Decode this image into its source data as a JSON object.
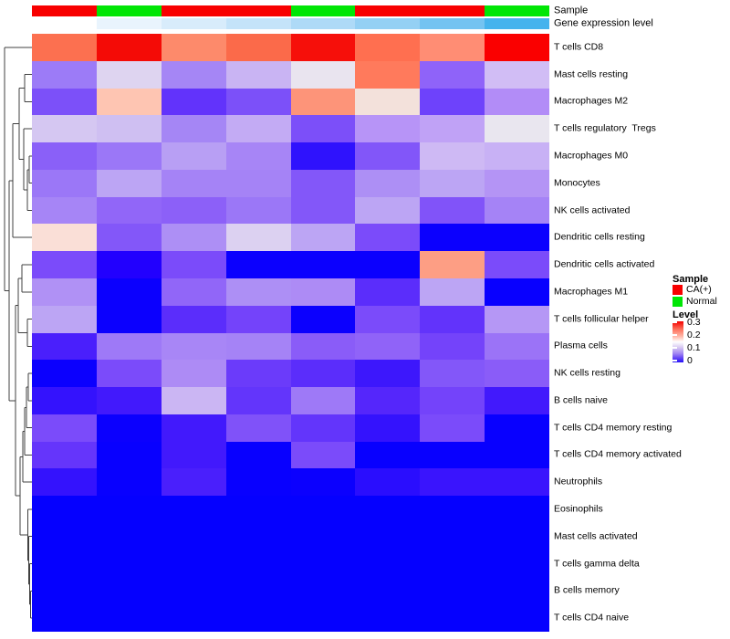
{
  "figure": {
    "annotations": {
      "sample_label": "Sample",
      "gene_label": "Gene expression level"
    },
    "legend": {
      "sample_title": "Sample",
      "sample_items": [
        {
          "label": "CA(+)",
          "color": "#f80000"
        },
        {
          "label": "Normal",
          "color": "#00e605"
        }
      ],
      "level_title": "Level",
      "level_ticks": [
        "0.3",
        "0.2",
        "0.1",
        "0"
      ]
    }
  },
  "chart_data": {
    "type": "heatmap",
    "n_cols": 8,
    "col_annotations": {
      "sample_groups": [
        "CA(+)",
        "Normal",
        "CA(+)",
        "CA(+)",
        "Normal",
        "CA(+)",
        "CA(+)",
        "Normal"
      ],
      "sample_colors": [
        "#f80000",
        "#00e605",
        "#f80000",
        "#f80000",
        "#00e605",
        "#f80000",
        "#f80000",
        "#00e605"
      ],
      "gene_expression_colors": [
        "#ffffff",
        "#e9f4fd",
        "#d8ecfb",
        "#c4e3f9",
        "#aedaf7",
        "#94d0f4",
        "#74c3f1",
        "#45b3ed"
      ]
    },
    "color_scale": {
      "label": "Level",
      "domain": [
        0,
        0.3
      ],
      "ticks": [
        0.3,
        0.2,
        0.1,
        0
      ],
      "min_color": "#0500ff",
      "mid_color": "#ffffff",
      "max_color": "#f80000"
    },
    "rows": [
      {
        "name": "T cells CD8",
        "colors": [
          "#fc7050",
          "#f40b06",
          "#fd8a6b",
          "#fb6a4a",
          "#f60f0a",
          "#ff6f50",
          "#ff8d74",
          "#fa0000"
        ]
      },
      {
        "name": "Mast cells resting",
        "colors": [
          "#9c7bf7",
          "#ded4f0",
          "#a586f5",
          "#c9b4f3",
          "#e9e4ef",
          "#ff7a5c",
          "#8f63f9",
          "#d1bdf5"
        ]
      },
      {
        "name": "Macrophages M2",
        "colors": [
          "#7c50f9",
          "#fec5b2",
          "#6233fb",
          "#7c50f9",
          "#fd9479",
          "#f3e1db",
          "#6e42fb",
          "#b28cf7"
        ]
      },
      {
        "name": "T cells regulatory  Tregs",
        "colors": [
          "#d5c7f2",
          "#cfbff2",
          "#a586f5",
          "#c3abf4",
          "#7c4ff9",
          "#b794f7",
          "#c0a2f6",
          "#e9e6ef"
        ]
      },
      {
        "name": "Macrophages M0",
        "colors": [
          "#8a60f8",
          "#9b77f7",
          "#b89ff4",
          "#a785f6",
          "#2f12fd",
          "#8256f9",
          "#ceb9f4",
          "#c8b1f5"
        ]
      },
      {
        "name": "Monocytes",
        "colors": [
          "#9b77f7",
          "#bca5f4",
          "#a583f6",
          "#a583f6",
          "#8357f9",
          "#ad8ff5",
          "#bca5f4",
          "#b494f5"
        ]
      },
      {
        "name": "NK cells activated",
        "colors": [
          "#a685f6",
          "#9166f8",
          "#8c60f8",
          "#9b77f7",
          "#8357f9",
          "#bca5f4",
          "#8153f9",
          "#a583f6"
        ]
      },
      {
        "name": "Dendritic cells resting",
        "colors": [
          "#fadfd7",
          "#8357f9",
          "#ad8ff5",
          "#dcd1f1",
          "#bca5f4",
          "#7b4bfa",
          "#0b00fe",
          "#0b00fe"
        ]
      },
      {
        "name": "Dendritic cells activated",
        "colors": [
          "#7b4bfa",
          "#2200fe",
          "#7b4bfa",
          "#0b00fe",
          "#0b00fe",
          "#0b00fe",
          "#fd9e84",
          "#7b4bfa"
        ]
      },
      {
        "name": "Macrophages M1",
        "colors": [
          "#b091f5",
          "#0b00fe",
          "#9166f8",
          "#ad8ff5",
          "#ad8bf5",
          "#5b2dfb",
          "#bca5f4",
          "#0800ff"
        ]
      },
      {
        "name": "T cells follicular helper",
        "colors": [
          "#bca5f4",
          "#0b00fe",
          "#5b2dfb",
          "#7443fa",
          "#0b00fe",
          "#7b4bfa",
          "#6233fb",
          "#b597f5"
        ]
      },
      {
        "name": "Plasma cells",
        "colors": [
          "#4a1ffc",
          "#9e79f7",
          "#a886f6",
          "#a583f6",
          "#8a5cf8",
          "#9063f8",
          "#7443fa",
          "#9b73f7"
        ]
      },
      {
        "name": "NK cells resting",
        "colors": [
          "#0b00fe",
          "#7b4bfa",
          "#ad8bf5",
          "#6b3bfa",
          "#5b2dfb",
          "#3d17fc",
          "#8357f9",
          "#8a5cf8"
        ]
      },
      {
        "name": "B cells naive",
        "colors": [
          "#3412fd",
          "#4219fc",
          "#cbb6f3",
          "#6335fb",
          "#9e79f7",
          "#5526fb",
          "#7443fa",
          "#4219fc"
        ]
      },
      {
        "name": "T cells CD4 memory resting",
        "colors": [
          "#7b4bfa",
          "#0b00fe",
          "#4219fc",
          "#8052f9",
          "#6335fb",
          "#3412fd",
          "#7b4bfa",
          "#0800ff"
        ]
      },
      {
        "name": "T cells CD4 memory activated",
        "colors": [
          "#6535fb",
          "#0800ff",
          "#4219fc",
          "#0800ff",
          "#7b4bfa",
          "#0800ff",
          "#0800ff",
          "#0800ff"
        ]
      },
      {
        "name": "Neutrophils",
        "colors": [
          "#3412fd",
          "#0800ff",
          "#4a1ffc",
          "#0800ff",
          "#0b00fe",
          "#2a0dfe",
          "#3a14fd",
          "#3a14fd"
        ]
      },
      {
        "name": "Eosinophils",
        "colors": [
          "#0500ff",
          "#0500ff",
          "#0500ff",
          "#0500ff",
          "#0500ff",
          "#0500ff",
          "#0500ff",
          "#0500ff"
        ]
      },
      {
        "name": "Mast cells activated",
        "colors": [
          "#0500ff",
          "#0500ff",
          "#0500ff",
          "#0500ff",
          "#0500ff",
          "#0500ff",
          "#0500ff",
          "#0500ff"
        ]
      },
      {
        "name": "T cells gamma delta",
        "colors": [
          "#0500ff",
          "#0500ff",
          "#0500ff",
          "#0500ff",
          "#0500ff",
          "#0500ff",
          "#0500ff",
          "#0500ff"
        ]
      },
      {
        "name": "B cells memory",
        "colors": [
          "#0500ff",
          "#0500ff",
          "#0500ff",
          "#0500ff",
          "#0500ff",
          "#0500ff",
          "#0500ff",
          "#0500ff"
        ]
      },
      {
        "name": "T cells CD4 naive",
        "colors": [
          "#0500ff",
          "#0500ff",
          "#0500ff",
          "#0500ff",
          "#0500ff",
          "#0500ff",
          "#0500ff",
          "#0500ff"
        ]
      }
    ],
    "dendrogram": {
      "stroke": "#404040",
      "segments": [
        [
          5,
          51.8,
          35,
          51.8
        ],
        [
          5,
          51.8,
          5,
          318.3
        ],
        [
          5,
          318.3,
          10,
          318.3
        ],
        [
          10,
          197.8,
          10,
          438.8
        ],
        [
          10,
          197.8,
          14,
          197.8
        ],
        [
          10,
          438.8,
          17,
          438.8
        ],
        [
          14,
          135.5,
          14,
          260.2
        ],
        [
          14,
          135.5,
          21,
          135.5
        ],
        [
          14,
          260.2,
          35,
          260.2
        ],
        [
          21,
          96.5,
          21,
          174.6
        ],
        [
          21,
          96.5,
          27,
          96.5
        ],
        [
          21,
          174.6,
          26,
          174.6
        ],
        [
          27,
          81.6,
          27,
          111.3
        ],
        [
          27,
          81.6,
          35,
          81.6
        ],
        [
          27,
          111.3,
          35,
          111.3
        ],
        [
          26,
          141.1,
          26,
          208.1
        ],
        [
          26,
          141.1,
          35,
          141.1
        ],
        [
          26,
          208.1,
          30,
          208.1
        ],
        [
          30,
          185.8,
          30,
          230.4
        ],
        [
          30,
          185.8,
          32,
          185.8
        ],
        [
          30,
          230.4,
          35,
          230.4
        ],
        [
          32,
          170.9,
          32,
          200.7
        ],
        [
          32,
          170.9,
          35,
          170.9
        ],
        [
          32,
          200.7,
          35,
          200.7
        ],
        [
          17,
          334.6,
          17,
          543.1
        ],
        [
          17,
          334.6,
          20,
          334.6
        ],
        [
          17,
          543.1,
          22,
          543.1
        ],
        [
          20,
          304.9,
          20,
          364.4
        ],
        [
          20,
          304.9,
          24,
          304.9
        ],
        [
          20,
          364.4,
          30,
          364.4
        ],
        [
          24,
          290,
          24,
          319.8
        ],
        [
          24,
          290,
          35,
          290
        ],
        [
          24,
          319.8,
          35,
          319.8
        ],
        [
          30,
          349.5,
          30,
          379.3
        ],
        [
          30,
          349.5,
          35,
          349.5
        ],
        [
          30,
          379.3,
          35,
          379.3
        ],
        [
          22,
          500.3,
          22,
          585.9
        ],
        [
          22,
          500.3,
          25,
          500.3
        ],
        [
          22,
          585.9,
          30.5,
          585.9
        ],
        [
          25,
          472.4,
          25,
          528.2
        ],
        [
          25,
          472.4,
          27,
          472.4
        ],
        [
          25,
          528.2,
          35,
          528.2
        ],
        [
          27,
          446.3,
          27,
          498.4
        ],
        [
          27,
          446.3,
          29,
          446.3
        ],
        [
          27,
          498.4,
          35,
          498.4
        ],
        [
          29,
          424,
          29,
          468.6
        ],
        [
          29,
          424,
          31,
          424
        ],
        [
          29,
          468.6,
          35,
          468.6
        ],
        [
          31,
          409.1,
          31,
          438.9
        ],
        [
          31,
          409.1,
          35,
          409.1
        ],
        [
          31,
          438.9,
          35,
          438.9
        ],
        [
          30.5,
          558,
          30.5,
          613.8
        ],
        [
          30.5,
          558,
          35,
          558
        ],
        [
          30.5,
          613.8,
          31.5,
          613.8
        ],
        [
          31.5,
          587.7,
          31.5,
          639.8
        ],
        [
          31.5,
          587.7,
          35,
          587.7
        ],
        [
          31.5,
          639.8,
          32.5,
          639.8
        ],
        [
          32.5,
          617.5,
          32.5,
          662.2
        ],
        [
          32.5,
          617.5,
          35,
          617.5
        ],
        [
          32.5,
          662.2,
          33.5,
          662.2
        ],
        [
          33.5,
          647.3,
          33.5,
          677.1
        ],
        [
          33.5,
          647.3,
          35,
          647.3
        ],
        [
          33.5,
          677.1,
          35,
          677.1
        ]
      ]
    }
  }
}
